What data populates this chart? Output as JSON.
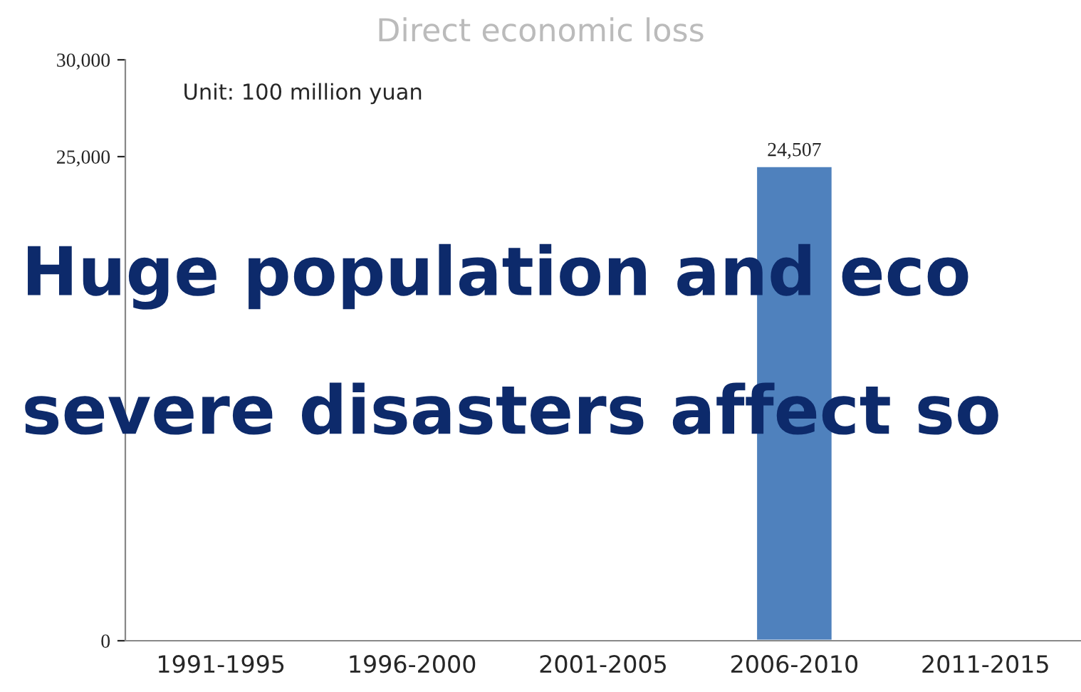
{
  "chart_data": {
    "type": "bar",
    "title": "Direct economic loss",
    "categories": [
      "1991-1995",
      "1996-2000",
      "2001-2005",
      "2006-2010",
      "2011-2015"
    ],
    "values": [
      null,
      null,
      null,
      24507,
      null
    ],
    "value_labels": [
      null,
      null,
      null,
      "24,507",
      null
    ],
    "color": "#4f81bd",
    "ylim": [
      0,
      30000
    ],
    "yticks": [
      {
        "value": 0,
        "label": "0"
      },
      {
        "value": 25000,
        "label": "25,000"
      },
      {
        "value": 30000,
        "label": "30,000"
      }
    ],
    "annotations": [
      "Unit: 100 million yuan",
      "Huge population and eco",
      "severe disasters affect so"
    ],
    "grid": false,
    "legend": false
  }
}
